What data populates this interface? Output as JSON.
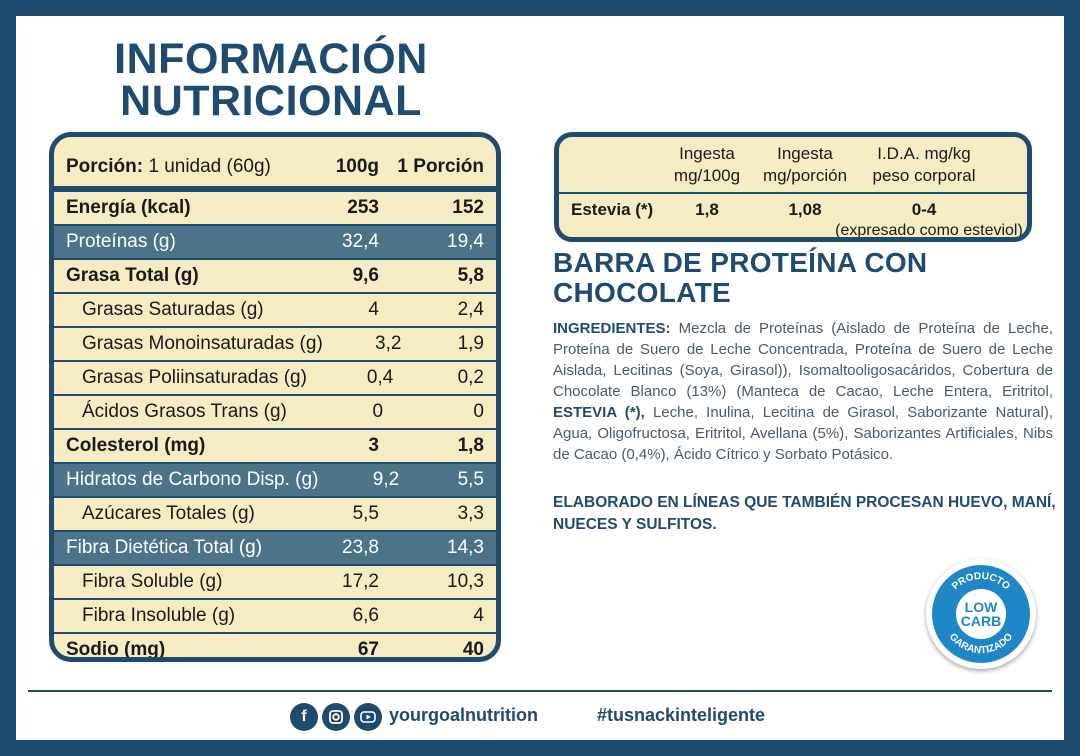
{
  "title": {
    "line1": "INFORMACIÓN",
    "line2": "NUTRICIONAL"
  },
  "nutrition": {
    "header": {
      "portion_label": "Porción:",
      "portion_value": "1 unidad (60g)",
      "col1": "100g",
      "col2": "1 Porción"
    },
    "rows": [
      {
        "label": "Energía (kcal)",
        "v100": "253",
        "vportion": "152"
      },
      {
        "label": "Proteínas (g)",
        "v100": "32,4",
        "vportion": "19,4"
      },
      {
        "label": "Grasa Total (g)",
        "v100": "9,6",
        "vportion": "5,8"
      },
      {
        "label": "Grasas Saturadas (g)",
        "v100": "4",
        "vportion": "2,4"
      },
      {
        "label": "Grasas Monoinsaturadas (g)",
        "v100": "3,2",
        "vportion": "1,9"
      },
      {
        "label": "Grasas Poliinsaturadas (g)",
        "v100": "0,4",
        "vportion": "0,2"
      },
      {
        "label": "Ácidos Grasos Trans (g)",
        "v100": "0",
        "vportion": "0"
      },
      {
        "label": "Colesterol (mg)",
        "v100": "3",
        "vportion": "1,8"
      },
      {
        "label": "Hidratos de Carbono Disp. (g)",
        "v100": "9,2",
        "vportion": "5,5"
      },
      {
        "label": "Azúcares Totales (g)",
        "v100": "5,5",
        "vportion": "3,3"
      },
      {
        "label": "Fibra Dietética Total (g)",
        "v100": "23,8",
        "vportion": "14,3"
      },
      {
        "label": "Fibra Soluble (g)",
        "v100": "17,2",
        "vportion": "10,3"
      },
      {
        "label": "Fibra Insoluble (g)",
        "v100": "6,6",
        "vportion": "4"
      },
      {
        "label": "Sodio (mg)",
        "v100": "67",
        "vportion": "40"
      }
    ]
  },
  "ida": {
    "h1a": "Ingesta",
    "h1b": "mg/100g",
    "h2a": "Ingesta",
    "h2b": "mg/porción",
    "h3a": "I.D.A. mg/kg",
    "h3b": "peso corporal",
    "row_label": "Estevia (*)",
    "v1": "1,8",
    "v2": "1,08",
    "v3": "0-4",
    "note": "(expresado como esteviol)"
  },
  "product": {
    "line1": "BARRA DE PROTEÍNA CON",
    "line2": "CHOCOLATE"
  },
  "ingredients": {
    "label": "INGREDIENTES:",
    "part1": " Mezcla de Proteínas (Aislado de Proteína de Leche, Proteína de Suero de Leche Concentrada, Proteína de Suero de Leche Aislada, Lecitinas (Soya, Girasol)), Isomaltooligosacáridos, Cobertura de Chocolate Blanco (13%) (Manteca de Cacao, Leche Entera, Eritritol, ",
    "highlight": "ESTEVIA (*),",
    "part2": " Leche, Inulina, Lecitina de Girasol, Saborizante Natural), Agua, Oligofructosa, Eritritol, Avellana (5%), Saborizantes Artificiales, Nibs de Cacao (0,4%), Ácido Cítrico y Sorbato Potásico."
  },
  "warning": "ELABORADO EN LÍNEAS QUE TAMBIÉN PROCESAN HUEVO, MANÍ, NUECES Y SULFITOS.",
  "badge": {
    "top_text": "PRODUCTO",
    "line1": "LOW",
    "line2": "CARB",
    "bottom_text": "GARANTIZADO"
  },
  "footer": {
    "handle": "yourgoalnutrition",
    "hashtag": "#tusnackinteligente"
  },
  "icons": {
    "facebook": "facebook-icon",
    "instagram": "instagram-icon",
    "youtube": "youtube-icon"
  },
  "colors": {
    "navy": "#1f4b6e",
    "cream": "#f5ecc4",
    "highlight_row": "#4d7389",
    "badge_blue": "#1f87c6"
  }
}
